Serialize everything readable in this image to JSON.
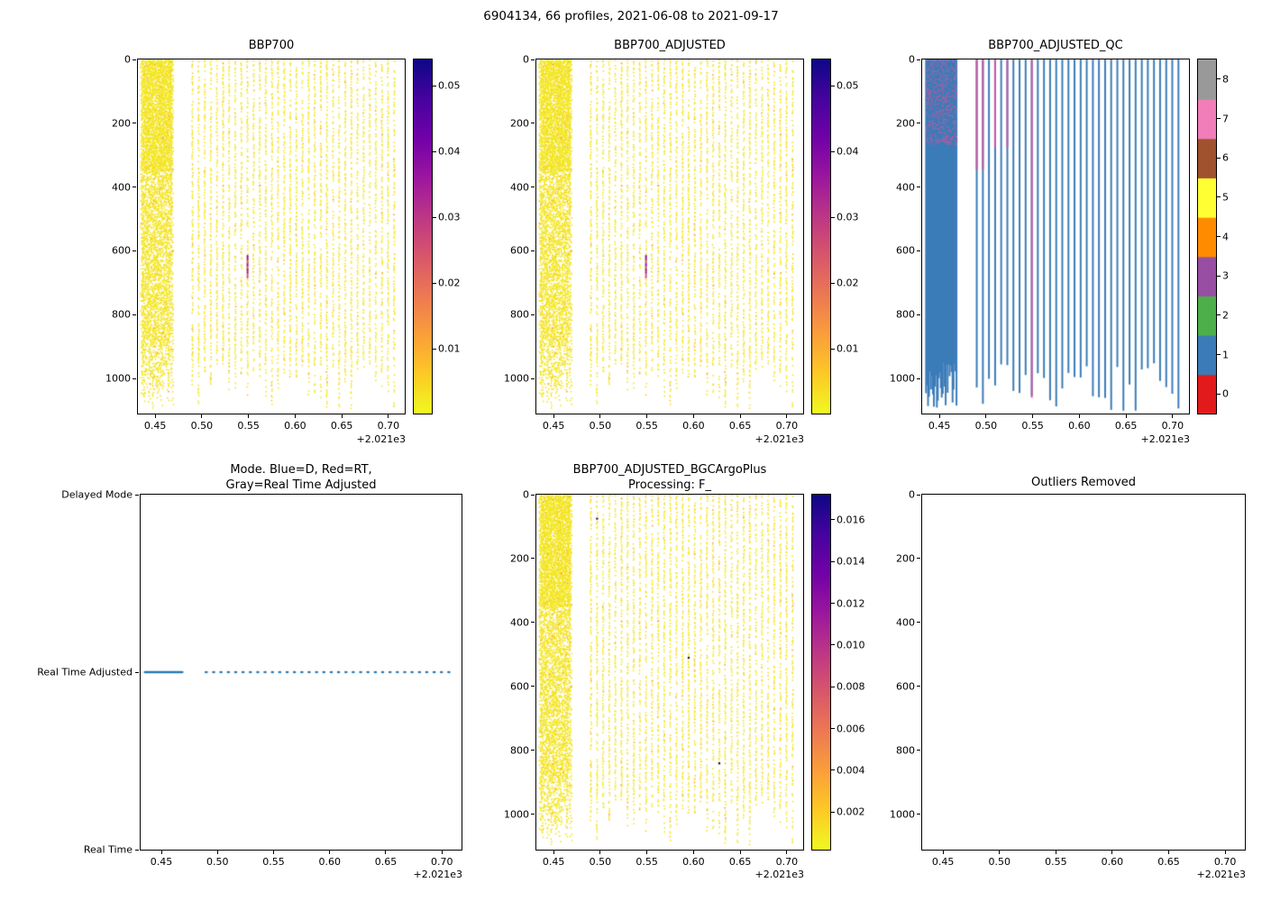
{
  "figure": {
    "suptitle": "6904134, 66 profiles, 2021-06-08 to 2021-09-17"
  },
  "axes": {
    "x_range": [
      0.4315,
      0.7175
    ],
    "x_tick_values": [
      0.45,
      0.5,
      0.55,
      0.6,
      0.65,
      0.7
    ],
    "x_tick_labels": [
      "0.45",
      "0.50",
      "0.55",
      "0.60",
      "0.65",
      "0.70"
    ],
    "x_offset_label": "+2.021e3",
    "depth_range": [
      0,
      1110
    ],
    "depth_tick_values": [
      0,
      200,
      400,
      600,
      800,
      1000
    ],
    "depth_tick_labels": [
      "0",
      "200",
      "400",
      "600",
      "800",
      "1000"
    ],
    "mode_categories": [
      "Delayed Mode",
      "Real Time Adjusted",
      "Real Time"
    ]
  },
  "profiles": {
    "count": 66,
    "dense_count": 32,
    "times": [
      0.4357,
      0.4368,
      0.4378,
      0.4389,
      0.4399,
      0.441,
      0.442,
      0.4431,
      0.4441,
      0.4452,
      0.4462,
      0.4473,
      0.4483,
      0.4494,
      0.4504,
      0.4515,
      0.4525,
      0.4536,
      0.4546,
      0.4557,
      0.4567,
      0.4578,
      0.4588,
      0.4599,
      0.4609,
      0.462,
      0.463,
      0.4641,
      0.4651,
      0.4662,
      0.4672,
      0.4683,
      0.49,
      0.4966,
      0.5031,
      0.5097,
      0.5162,
      0.5228,
      0.5293,
      0.5359,
      0.5424,
      0.549,
      0.5555,
      0.5621,
      0.5686,
      0.5752,
      0.5817,
      0.5883,
      0.5948,
      0.6014,
      0.6079,
      0.6145,
      0.621,
      0.6276,
      0.6341,
      0.6407,
      0.6472,
      0.6538,
      0.6603,
      0.6669,
      0.6734,
      0.68,
      0.6865,
      0.6931,
      0.6996,
      0.7062
    ]
  },
  "colors": {
    "scatter_yellow": "#f2e51d",
    "scatter_orange": "#fdc727",
    "scatter_orange_deep": "#fb9e3a",
    "dark_dot": "#23114f",
    "anomaly_colors": [
      "#9c179e",
      "#bd3786",
      "#46039f",
      "#d8576b",
      "#7201a8"
    ],
    "qc_blue": "#3b7cb8",
    "qc_pink": "#c45a9f",
    "mode_dot": "#2878b5",
    "plasma_r_stops": [
      "#f0f921",
      "#fdca26",
      "#fb9f3a",
      "#ed7953",
      "#d8576b",
      "#bd3786",
      "#9c179e",
      "#7201a8",
      "#46039f",
      "#0d0887"
    ]
  },
  "chart_data": [
    {
      "type": "scatter",
      "title": "BBP700",
      "x_source": "profiles.times",
      "x_tick_labels": [
        "0.45",
        "0.50",
        "0.55",
        "0.60",
        "0.65",
        "0.70"
      ],
      "x_offset": "+2.021e3",
      "y_tick_labels": [
        "0",
        "200",
        "400",
        "600",
        "800",
        "1000"
      ],
      "y_range_m": [
        0,
        1110
      ],
      "values_summary": "mostly low backscatter ~0.0005-0.002 (yellow) over full depth for all 66 profiles",
      "anomaly": {
        "time": 0.549,
        "depths": [
          615,
          685
        ],
        "value_range": [
          0.02,
          0.05
        ]
      },
      "colorbar": {
        "colormap": "plasma_r",
        "vmin": 0.0002,
        "vmax": 0.054,
        "ticks": [
          0.01,
          0.02,
          0.03,
          0.04,
          0.05
        ],
        "tick_labels": [
          "0.01",
          "0.02",
          "0.03",
          "0.04",
          "0.05"
        ]
      }
    },
    {
      "type": "scatter",
      "title": "BBP700_ADJUSTED",
      "x_source": "profiles.times",
      "x_tick_labels": [
        "0.45",
        "0.50",
        "0.55",
        "0.60",
        "0.65",
        "0.70"
      ],
      "x_offset": "+2.021e3",
      "y_tick_labels": [
        "0",
        "200",
        "400",
        "600",
        "800",
        "1000"
      ],
      "y_range_m": [
        0,
        1110
      ],
      "values_summary": "same as BBP700: mostly ~0.0005-0.002 (yellow)",
      "anomaly": {
        "time": 0.549,
        "depths": [
          615,
          685
        ],
        "value_range": [
          0.02,
          0.05
        ]
      },
      "colorbar": {
        "colormap": "plasma_r",
        "vmin": 0.0002,
        "vmax": 0.054,
        "ticks": [
          0.01,
          0.02,
          0.03,
          0.04,
          0.05
        ],
        "tick_labels": [
          "0.01",
          "0.02",
          "0.03",
          "0.04",
          "0.05"
        ]
      }
    },
    {
      "type": "heatmap",
      "title": "BBP700_ADJUSTED_QC",
      "x_source": "profiles.times",
      "dominant_qc": 1,
      "dense_cluster_mixed_depths": [
        0,
        270
      ],
      "flagged_profiles": [
        {
          "time": 0.49,
          "depths": [
            0,
            345
          ],
          "qc": 7
        },
        {
          "time": 0.4966,
          "depths": [
            0,
            345
          ],
          "qc": 7
        },
        {
          "time": 0.5097,
          "depths": [
            0,
            275
          ],
          "qc": 7
        },
        {
          "time": 0.5228,
          "depths": [
            0,
            275
          ],
          "qc": 7
        },
        {
          "time": 0.549,
          "depths": [
            0,
            1060
          ],
          "qc": 7
        }
      ],
      "qc_scale": {
        "ticks": [
          0,
          1,
          2,
          3,
          4,
          5,
          6,
          7,
          8
        ],
        "tick_labels": [
          "0",
          "1",
          "2",
          "3",
          "4",
          "5",
          "6",
          "7",
          "8"
        ],
        "colors": [
          "#e31a1c",
          "#3b7cb8",
          "#4daf4a",
          "#984ea3",
          "#ff8c00",
          "#ffff33",
          "#a0512e",
          "#f17eb9",
          "#999999"
        ]
      }
    },
    {
      "type": "scatter",
      "title": "Mode. Blue=D, Red=RT,\nGray=Real Time Adjusted",
      "categories": [
        "Delayed Mode",
        "Real Time Adjusted",
        "Real Time"
      ],
      "mode_all_profiles": "Real Time Adjusted",
      "dot_row_fraction": 0.5,
      "dot_color": "#2878b5"
    },
    {
      "type": "scatter",
      "title": "BBP700_ADJUSTED_BGCArgoPlus\nProcessing: F_",
      "x_source": "profiles.times",
      "x_tick_labels": [
        "0.45",
        "0.50",
        "0.55",
        "0.60",
        "0.65",
        "0.70"
      ],
      "x_offset": "+2.021e3",
      "y_tick_labels": [
        "0",
        "200",
        "400",
        "600",
        "800",
        "1000"
      ],
      "y_range_m": [
        0,
        1110
      ],
      "values_summary": "mostly ~0.0005-0.002 (yellow) over full depth",
      "colorbar": {
        "colormap": "plasma_r",
        "vmin": 0.0002,
        "vmax": 0.0172,
        "ticks": [
          0.002,
          0.004,
          0.006,
          0.008,
          0.01,
          0.012,
          0.014,
          0.016
        ],
        "tick_labels": [
          "0.002",
          "0.004",
          "0.006",
          "0.008",
          "0.010",
          "0.012",
          "0.014",
          "0.016"
        ]
      },
      "dark_dots": [
        {
          "time": 0.4966,
          "depth": 75
        },
        {
          "time": 0.5948,
          "depth": 510
        },
        {
          "time": 0.6276,
          "depth": 840
        }
      ]
    },
    {
      "type": "scatter",
      "title": "Outliers Removed",
      "points": [],
      "x_tick_labels": [
        "0.45",
        "0.50",
        "0.55",
        "0.60",
        "0.65",
        "0.70"
      ],
      "x_offset": "+2.021e3",
      "y_tick_labels": [
        "0",
        "200",
        "400",
        "600",
        "800",
        "1000"
      ]
    }
  ]
}
